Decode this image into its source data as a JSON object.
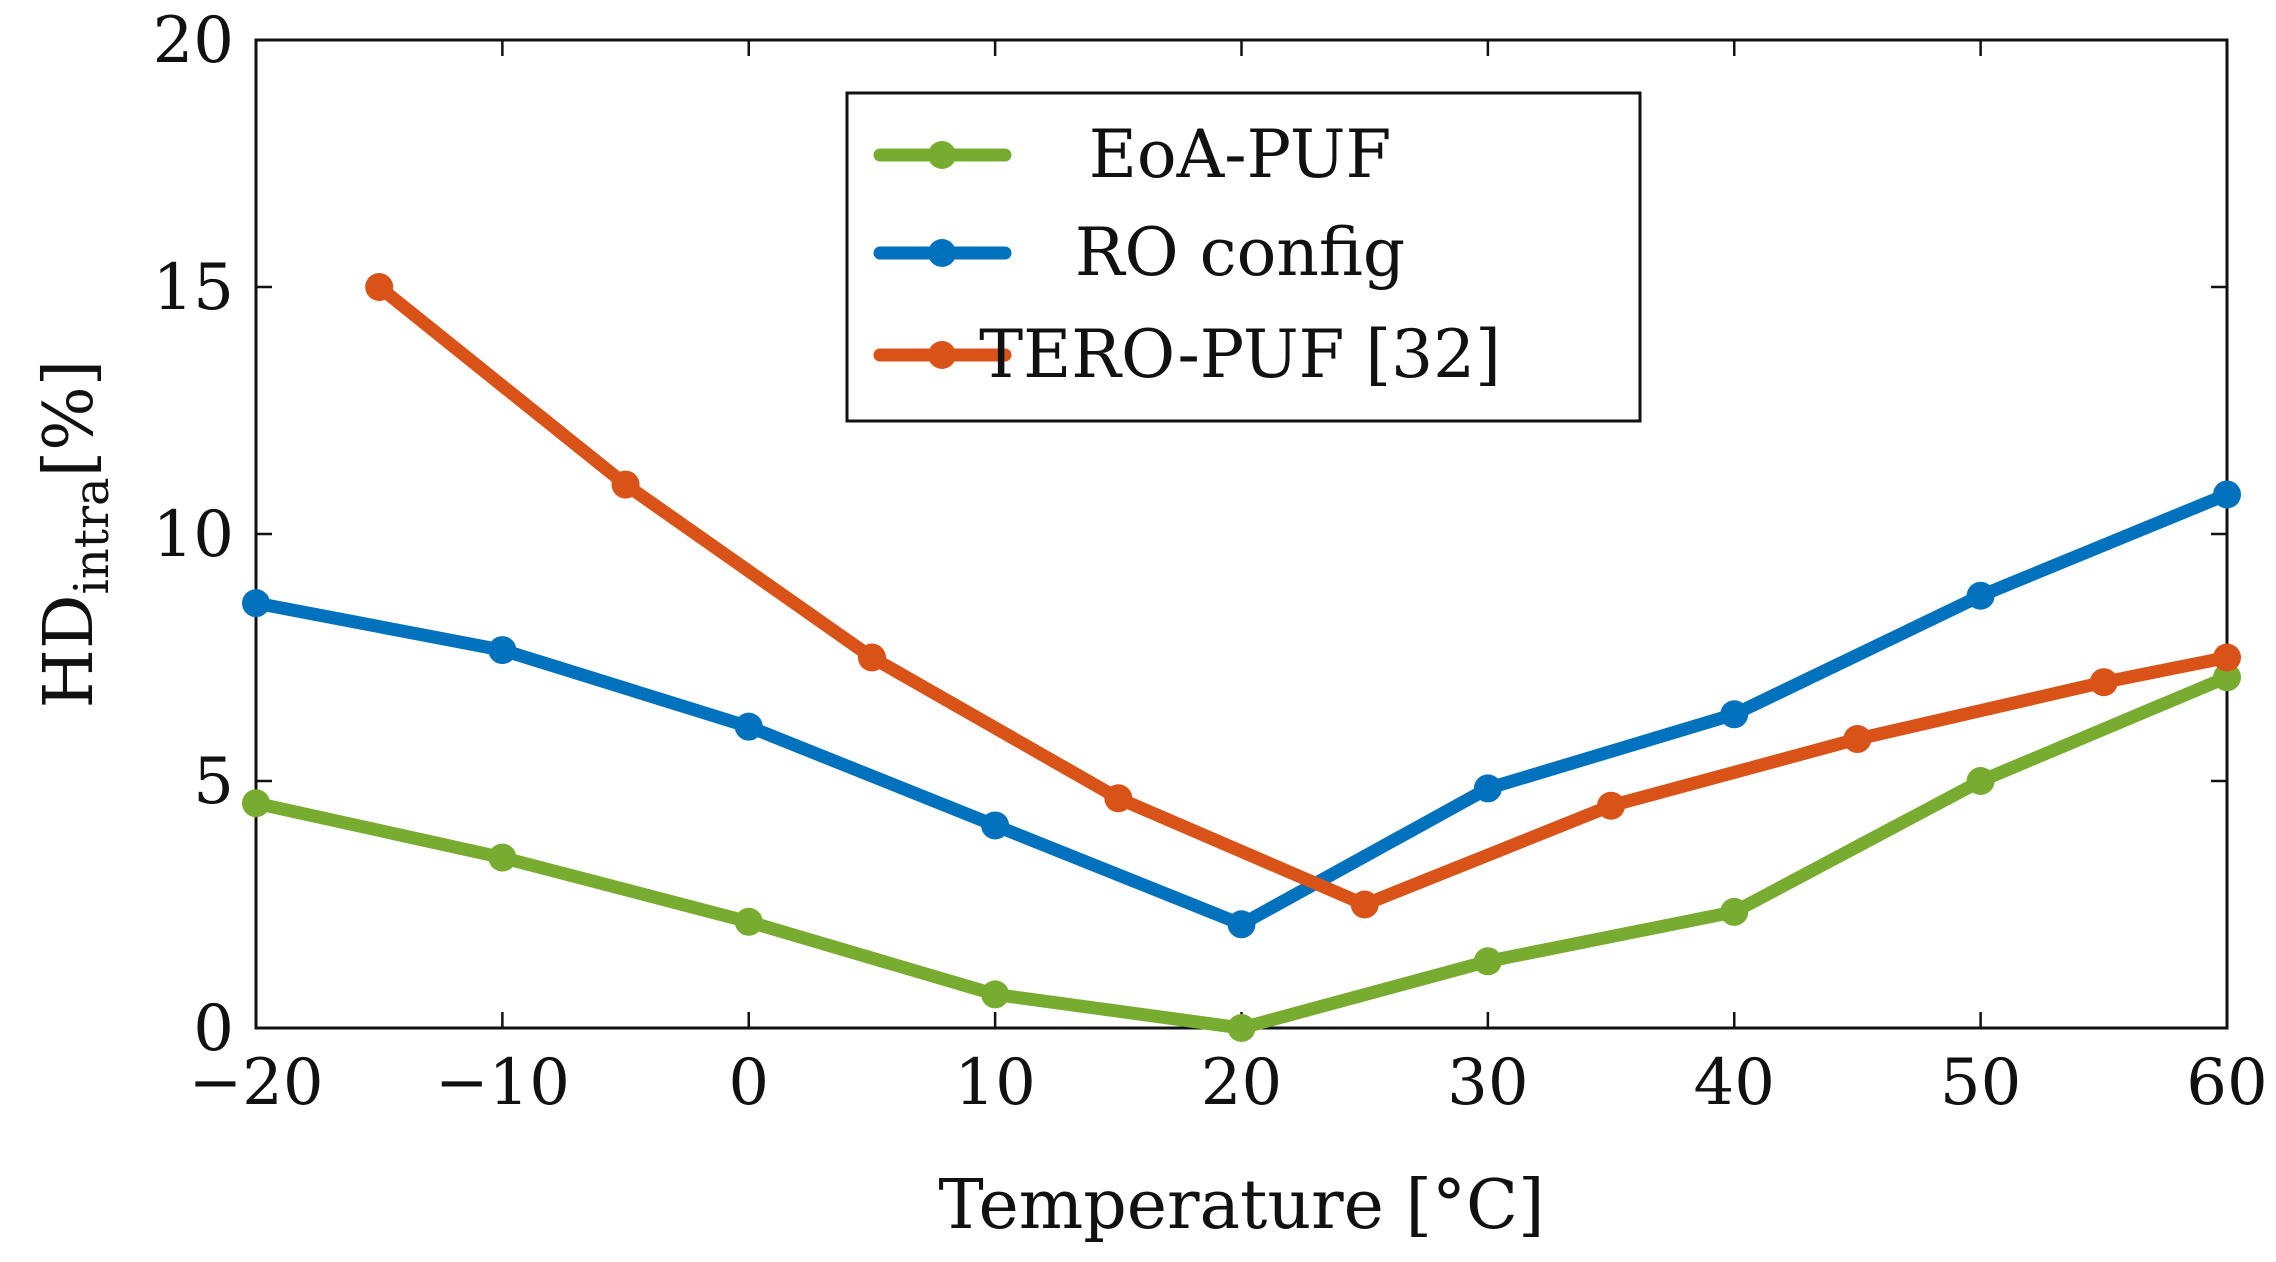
{
  "chart_data": {
    "type": "line",
    "title": "",
    "xlabel": "Temperature [°C]",
    "ylabel": "HD",
    "ylabel_sub": "intra",
    "ylabel_suffix": "[%]",
    "xlim": [
      -20,
      60
    ],
    "ylim": [
      0,
      20
    ],
    "xticks": [
      -20,
      -10,
      0,
      10,
      20,
      30,
      40,
      50,
      60
    ],
    "yticks": [
      0,
      5,
      10,
      15,
      20
    ],
    "xtick_labels": [
      "−20",
      "−10",
      "0",
      "10",
      "20",
      "30",
      "40",
      "50",
      "60"
    ],
    "ytick_labels": [
      "0",
      "5",
      "10",
      "15",
      "20"
    ],
    "grid": false,
    "legend_position": "top-center",
    "series": [
      {
        "name": "EoA-PUF",
        "color": "#77ac30",
        "x": [
          -20,
          -10,
          0,
          10,
          20,
          30,
          40,
          50,
          60
        ],
        "y": [
          4.55,
          3.45,
          2.15,
          0.68,
          0.0,
          1.35,
          2.35,
          5.0,
          7.1
        ]
      },
      {
        "name": "RO config",
        "color": "#0072bd",
        "x": [
          -20,
          -10,
          0,
          10,
          20,
          30,
          40,
          50,
          60
        ],
        "y": [
          8.6,
          7.65,
          6.1,
          4.1,
          2.1,
          4.85,
          6.35,
          8.75,
          10.8
        ]
      },
      {
        "name": "TERO-PUF [32]",
        "color": "#d95319",
        "x": [
          -15,
          -5,
          5,
          15,
          25,
          35,
          45,
          55,
          60
        ],
        "y": [
          15.0,
          11.0,
          7.5,
          4.65,
          2.5,
          4.5,
          5.85,
          7.0,
          7.5
        ]
      }
    ]
  }
}
